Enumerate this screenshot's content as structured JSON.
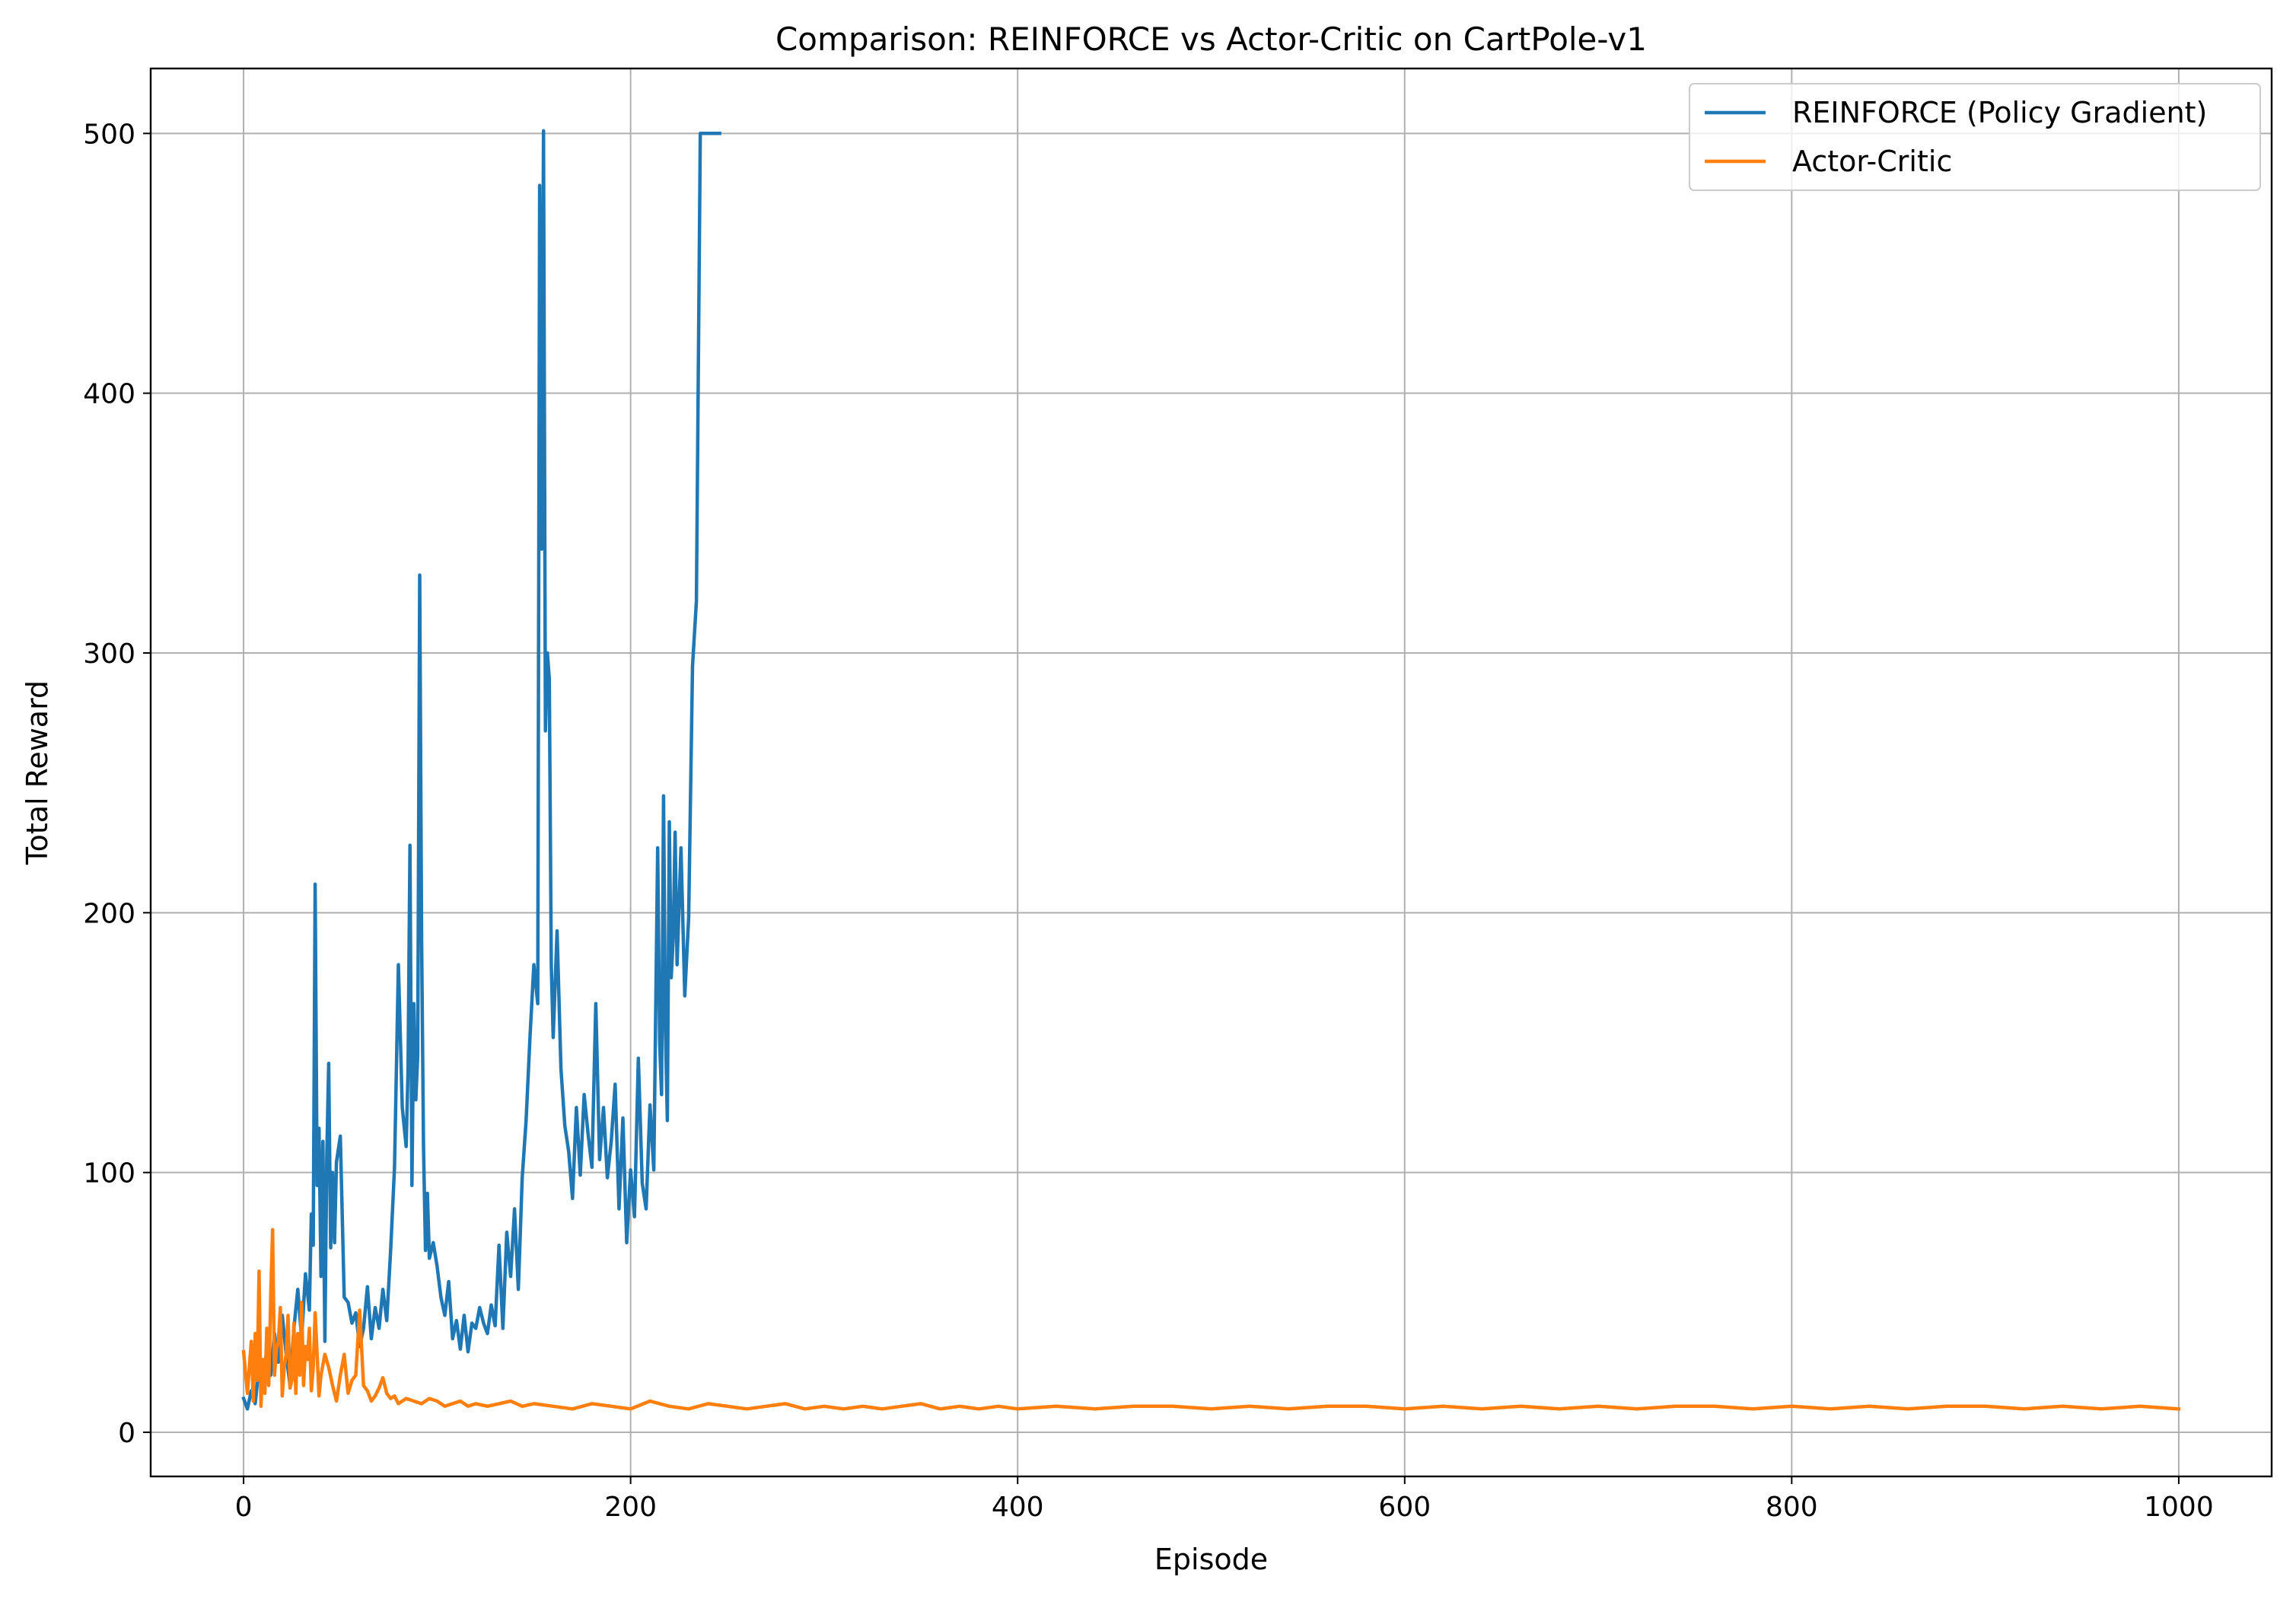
{
  "chart_data": {
    "type": "line",
    "title": "Comparison: REINFORCE vs Actor-Critic on CartPole-v1",
    "xlabel": "Episode",
    "ylabel": "Total Reward",
    "xlim": [
      -48,
      1048
    ],
    "ylim": [
      -17,
      525
    ],
    "xticks": [
      0,
      200,
      400,
      600,
      800,
      1000
    ],
    "yticks": [
      0,
      100,
      200,
      300,
      400,
      500
    ],
    "xtick_labels": [
      "0",
      "200",
      "400",
      "600",
      "800",
      "1000"
    ],
    "ytick_labels": [
      "0",
      "100",
      "200",
      "300",
      "400",
      "500"
    ],
    "grid": true,
    "legend_position": "top-right",
    "series": [
      {
        "name": "REINFORCE (Policy Gradient)",
        "color": "#1f77b4",
        "x": [
          0,
          2,
          4,
          6,
          8,
          10,
          12,
          14,
          16,
          18,
          20,
          22,
          24,
          26,
          28,
          30,
          32,
          34,
          35,
          36,
          37,
          38,
          39,
          40,
          41,
          42,
          43,
          44,
          45,
          46,
          47,
          48,
          50,
          52,
          54,
          56,
          58,
          60,
          62,
          64,
          66,
          68,
          70,
          72,
          74,
          76,
          78,
          80,
          82,
          84,
          85,
          86,
          87,
          88,
          89,
          90,
          91,
          92,
          93,
          94,
          95,
          96,
          98,
          100,
          102,
          104,
          106,
          108,
          110,
          112,
          114,
          116,
          118,
          120,
          122,
          124,
          126,
          128,
          130,
          132,
          134,
          136,
          138,
          140,
          142,
          144,
          146,
          148,
          150,
          152,
          153,
          154,
          155,
          156,
          157,
          158,
          159,
          160,
          162,
          164,
          166,
          168,
          170,
          172,
          174,
          176,
          178,
          180,
          182,
          184,
          186,
          188,
          190,
          192,
          194,
          196,
          198,
          200,
          202,
          204,
          206,
          208,
          210,
          212,
          214,
          215,
          216,
          217,
          218,
          219,
          220,
          221,
          222,
          223,
          224,
          226,
          228,
          230,
          232,
          234,
          236,
          238,
          240,
          242,
          244,
          246
        ],
        "y": [
          13,
          9,
          16,
          11,
          25,
          19,
          32,
          22,
          38,
          27,
          45,
          30,
          18,
          40,
          55,
          36,
          61,
          47,
          84,
          72,
          211,
          95,
          117,
          60,
          112,
          35,
          106,
          142,
          71,
          100,
          73,
          104,
          114,
          52,
          50,
          42,
          46,
          33,
          40,
          56,
          36,
          48,
          40,
          55,
          43,
          70,
          102,
          180,
          125,
          110,
          140,
          226,
          95,
          165,
          128,
          145,
          330,
          190,
          110,
          70,
          92,
          67,
          73,
          64,
          52,
          45,
          58,
          36,
          43,
          32,
          45,
          31,
          42,
          40,
          48,
          42,
          38,
          49,
          41,
          72,
          40,
          77,
          60,
          86,
          55,
          98,
          120,
          152,
          180,
          165,
          480,
          340,
          501,
          270,
          300,
          290,
          180,
          152,
          193,
          140,
          118,
          108,
          90,
          125,
          99,
          130,
          115,
          102,
          165,
          105,
          125,
          98,
          112,
          134,
          86,
          121,
          73,
          101,
          83,
          144,
          96,
          86,
          126,
          101,
          225,
          150,
          130,
          245,
          155,
          120,
          235,
          175,
          190,
          231,
          180,
          225,
          168,
          198,
          295,
          320,
          500,
          500,
          500,
          500,
          500,
          500
        ]
      },
      {
        "name": "Actor-Critic",
        "color": "#ff7f0e",
        "x": [
          0,
          2,
          4,
          5,
          6,
          7,
          8,
          9,
          10,
          11,
          12,
          13,
          14,
          15,
          16,
          17,
          18,
          19,
          20,
          21,
          22,
          23,
          24,
          25,
          26,
          27,
          28,
          29,
          30,
          31,
          32,
          33,
          34,
          35,
          36,
          37,
          38,
          39,
          40,
          42,
          44,
          46,
          48,
          50,
          52,
          54,
          56,
          58,
          60,
          62,
          64,
          66,
          68,
          70,
          72,
          74,
          76,
          78,
          80,
          84,
          88,
          92,
          96,
          100,
          104,
          108,
          112,
          116,
          120,
          126,
          132,
          138,
          144,
          150,
          160,
          170,
          180,
          190,
          200,
          210,
          220,
          230,
          240,
          250,
          260,
          270,
          280,
          290,
          300,
          310,
          320,
          330,
          340,
          350,
          360,
          370,
          380,
          390,
          400,
          420,
          440,
          460,
          480,
          500,
          520,
          540,
          560,
          580,
          600,
          620,
          640,
          660,
          680,
          700,
          720,
          740,
          760,
          780,
          800,
          820,
          840,
          860,
          880,
          900,
          920,
          940,
          960,
          980,
          1000
        ],
        "y": [
          31,
          15,
          35,
          12,
          38,
          20,
          62,
          10,
          28,
          15,
          40,
          18,
          52,
          78,
          22,
          32,
          35,
          48,
          14,
          25,
          30,
          45,
          17,
          20,
          42,
          15,
          38,
          22,
          50,
          18,
          33,
          28,
          40,
          16,
          25,
          46,
          30,
          14,
          22,
          30,
          25,
          18,
          12,
          22,
          30,
          15,
          20,
          22,
          47,
          18,
          16,
          12,
          14,
          17,
          21,
          15,
          13,
          14,
          11,
          13,
          12,
          11,
          13,
          12,
          10,
          11,
          12,
          10,
          11,
          10,
          11,
          12,
          10,
          11,
          10,
          9,
          11,
          10,
          9,
          12,
          10,
          9,
          11,
          10,
          9,
          10,
          11,
          9,
          10,
          9,
          10,
          9,
          10,
          11,
          9,
          10,
          9,
          10,
          9,
          10,
          9,
          10,
          10,
          9,
          10,
          9,
          10,
          10,
          9,
          10,
          9,
          10,
          9,
          10,
          9,
          10,
          10,
          9,
          10,
          9,
          10,
          9,
          10,
          10,
          9,
          10,
          9,
          10,
          9
        ]
      }
    ]
  }
}
